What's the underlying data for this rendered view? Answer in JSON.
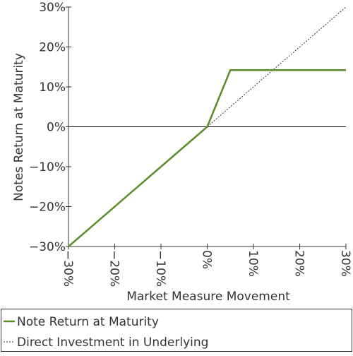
{
  "chart_data": {
    "type": "line",
    "x_label": "Market Measure Movement",
    "y_label": "Notes Return at Maturity",
    "xlim": [
      -30,
      30
    ],
    "ylim": [
      -30,
      30
    ],
    "xticks": [
      {
        "value": -30,
        "label": "−30%"
      },
      {
        "value": -20,
        "label": "−20%"
      },
      {
        "value": -10,
        "label": "−10%"
      },
      {
        "value": 0,
        "label": "0%"
      },
      {
        "value": 10,
        "label": "10%"
      },
      {
        "value": 20,
        "label": "20%"
      },
      {
        "value": 30,
        "label": "30%"
      }
    ],
    "yticks": [
      {
        "value": -30,
        "label": "−30%"
      },
      {
        "value": -20,
        "label": "−20%"
      },
      {
        "value": -10,
        "label": "−10%"
      },
      {
        "value": 0,
        "label": "0%"
      },
      {
        "value": 10,
        "label": "10%"
      },
      {
        "value": 20,
        "label": "20%"
      },
      {
        "value": 30,
        "label": "30%"
      }
    ],
    "series": [
      {
        "name": "Note Return at Maturity",
        "color": "#5b8c2a",
        "style": "solid",
        "x": [
          -30,
          0,
          5,
          30
        ],
        "values": [
          -30,
          0,
          14.2,
          14.2
        ]
      },
      {
        "name": "Direct Investment in Underlying",
        "color": "#333333",
        "style": "dotted",
        "x": [
          -30,
          30
        ],
        "values": [
          -30,
          30
        ]
      }
    ]
  }
}
